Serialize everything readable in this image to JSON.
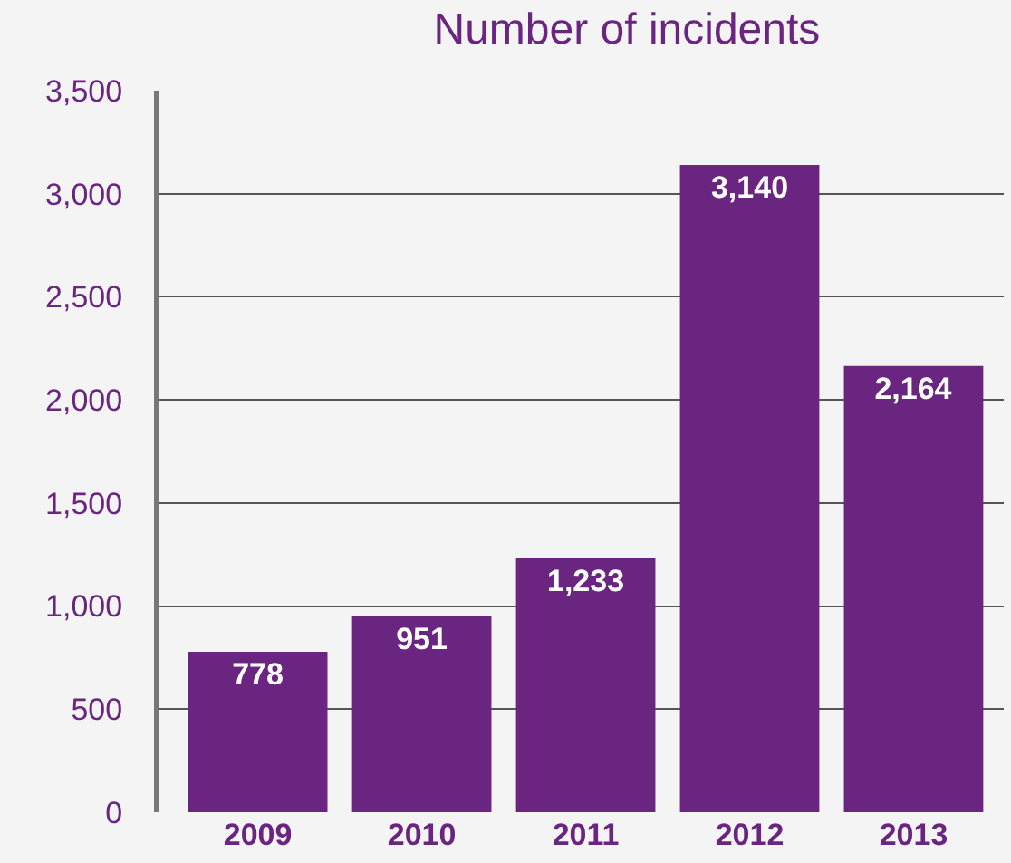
{
  "chart_data": {
    "type": "bar",
    "title": "Number of incidents",
    "categories": [
      "2009",
      "2010",
      "2011",
      "2012",
      "2013"
    ],
    "values": [
      778,
      951,
      1233,
      3140,
      2164
    ],
    "color": "#6a2580",
    "ylim": [
      0,
      3500
    ],
    "yticks": [
      0,
      500,
      {
        "value": 1000,
        "label": "1,000"
      },
      {
        "value": 1500,
        "label": "1,500"
      },
      {
        "value": 2000,
        "label": "2,000"
      },
      {
        "value": 2500,
        "label": "2,500"
      },
      {
        "value": 3000,
        "label": "3,000"
      },
      {
        "value": 3500,
        "label": "3,500"
      }
    ],
    "grid": "y",
    "value_labels": [
      "778",
      "951",
      "1,233",
      "3,140",
      "2,164"
    ]
  }
}
